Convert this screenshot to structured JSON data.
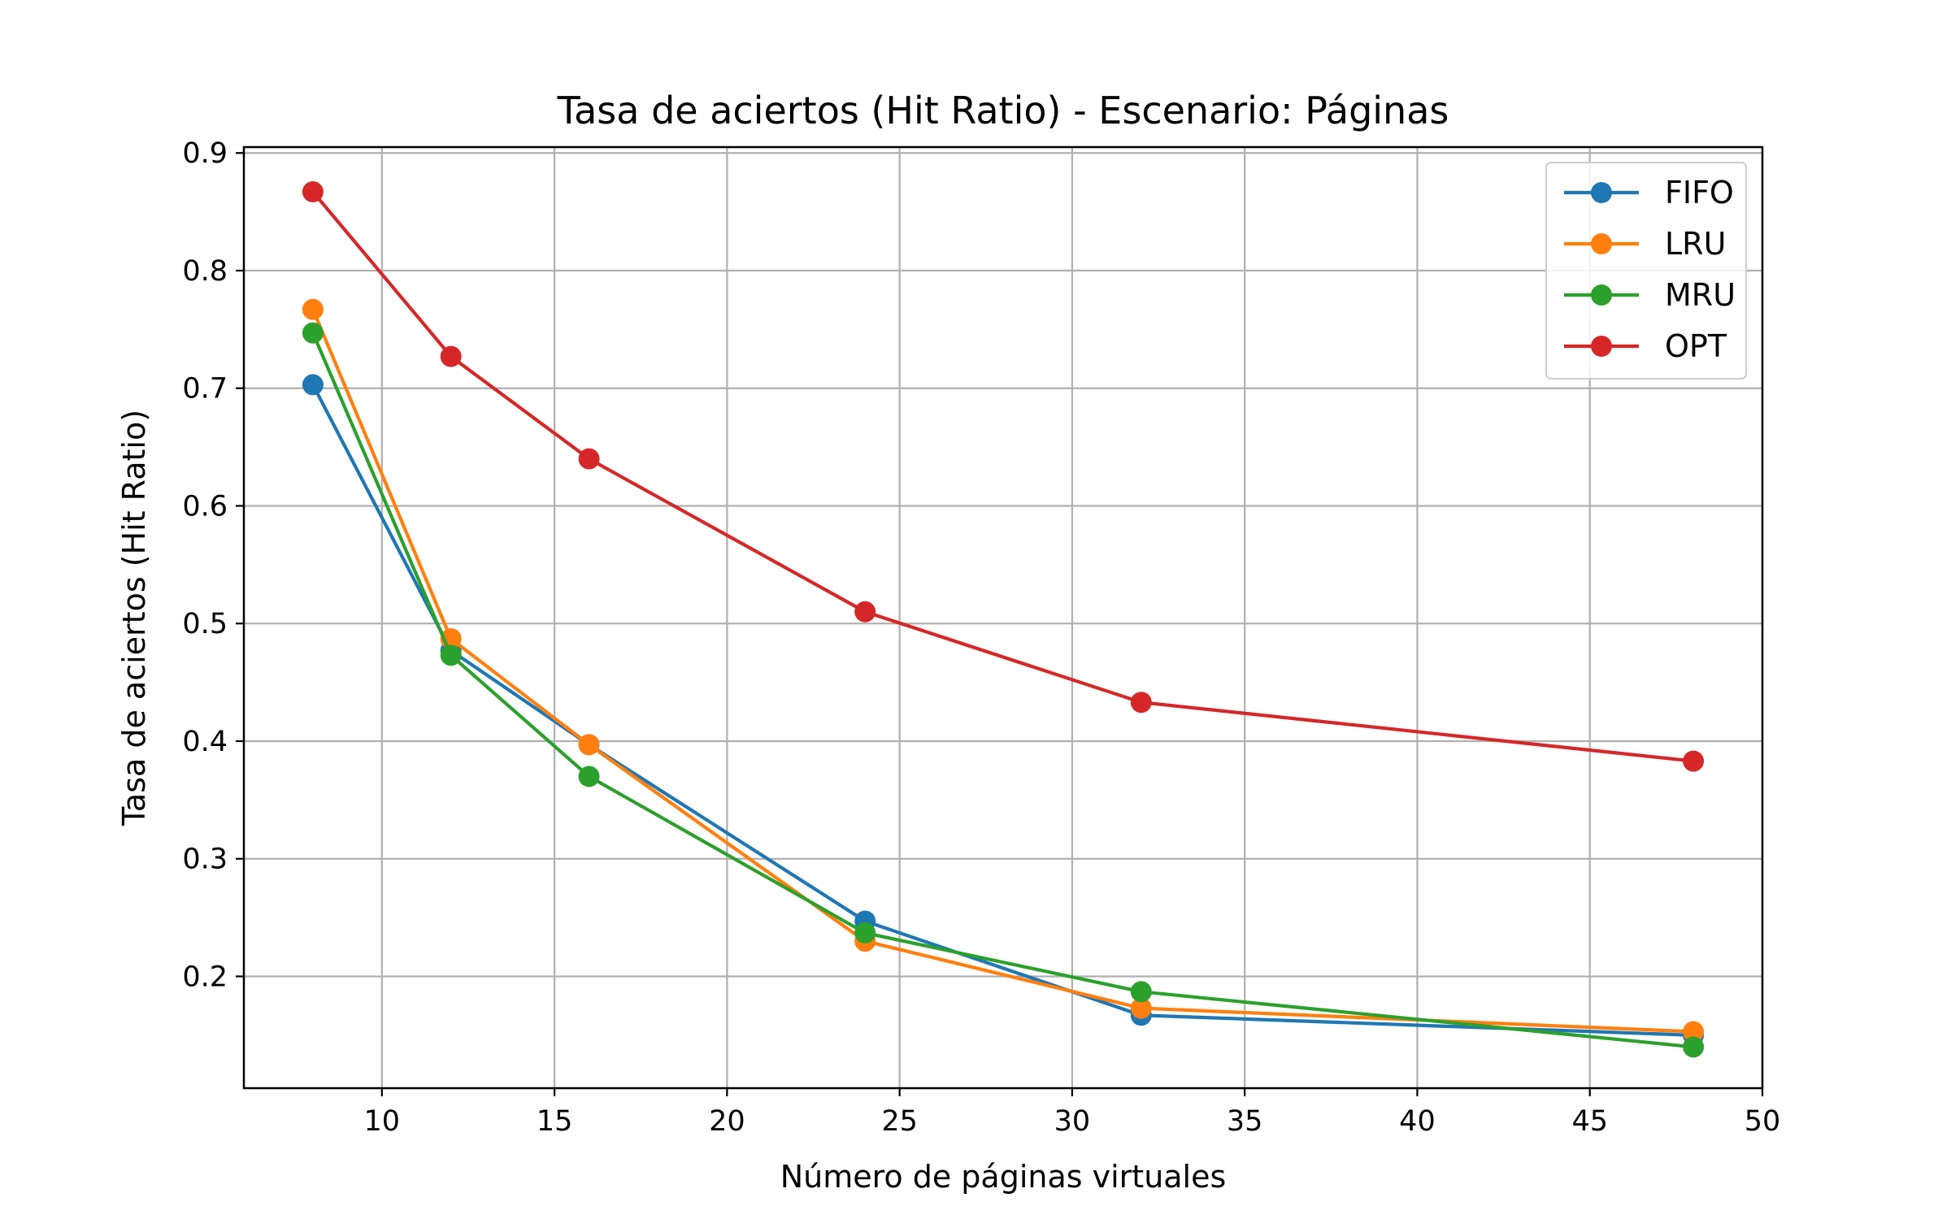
{
  "chart_data": {
    "type": "line",
    "title": "Tasa de aciertos (Hit Ratio) - Escenario: Páginas",
    "xlabel": "Número de páginas virtuales",
    "ylabel": "Tasa de aciertos (Hit Ratio)",
    "x": [
      8,
      12,
      16,
      24,
      32,
      48
    ],
    "xlim": [
      6,
      50
    ],
    "ylim": [
      0.105,
      0.905
    ],
    "xticks": [
      10,
      15,
      20,
      25,
      30,
      35,
      40,
      45,
      50
    ],
    "yticks": [
      0.2,
      0.3,
      0.4,
      0.5,
      0.6,
      0.7,
      0.8,
      0.9
    ],
    "xtick_labels": [
      "10",
      "15",
      "20",
      "25",
      "30",
      "35",
      "40",
      "45",
      "50"
    ],
    "ytick_labels": [
      "0.2",
      "0.3",
      "0.4",
      "0.5",
      "0.6",
      "0.7",
      "0.8",
      "0.9"
    ],
    "grid": true,
    "legend_position": "top-right",
    "series": [
      {
        "name": "FIFO",
        "color": "#1f77b4",
        "values": [
          0.703,
          0.477,
          0.397,
          0.247,
          0.167,
          0.15
        ]
      },
      {
        "name": "LRU",
        "color": "#ff7f0e",
        "values": [
          0.767,
          0.487,
          0.397,
          0.23,
          0.173,
          0.153
        ]
      },
      {
        "name": "MRU",
        "color": "#2ca02c",
        "values": [
          0.747,
          0.473,
          0.37,
          0.237,
          0.187,
          0.14
        ]
      },
      {
        "name": "OPT",
        "color": "#d62728",
        "values": [
          0.867,
          0.727,
          0.64,
          0.51,
          0.433,
          0.383
        ]
      }
    ]
  }
}
